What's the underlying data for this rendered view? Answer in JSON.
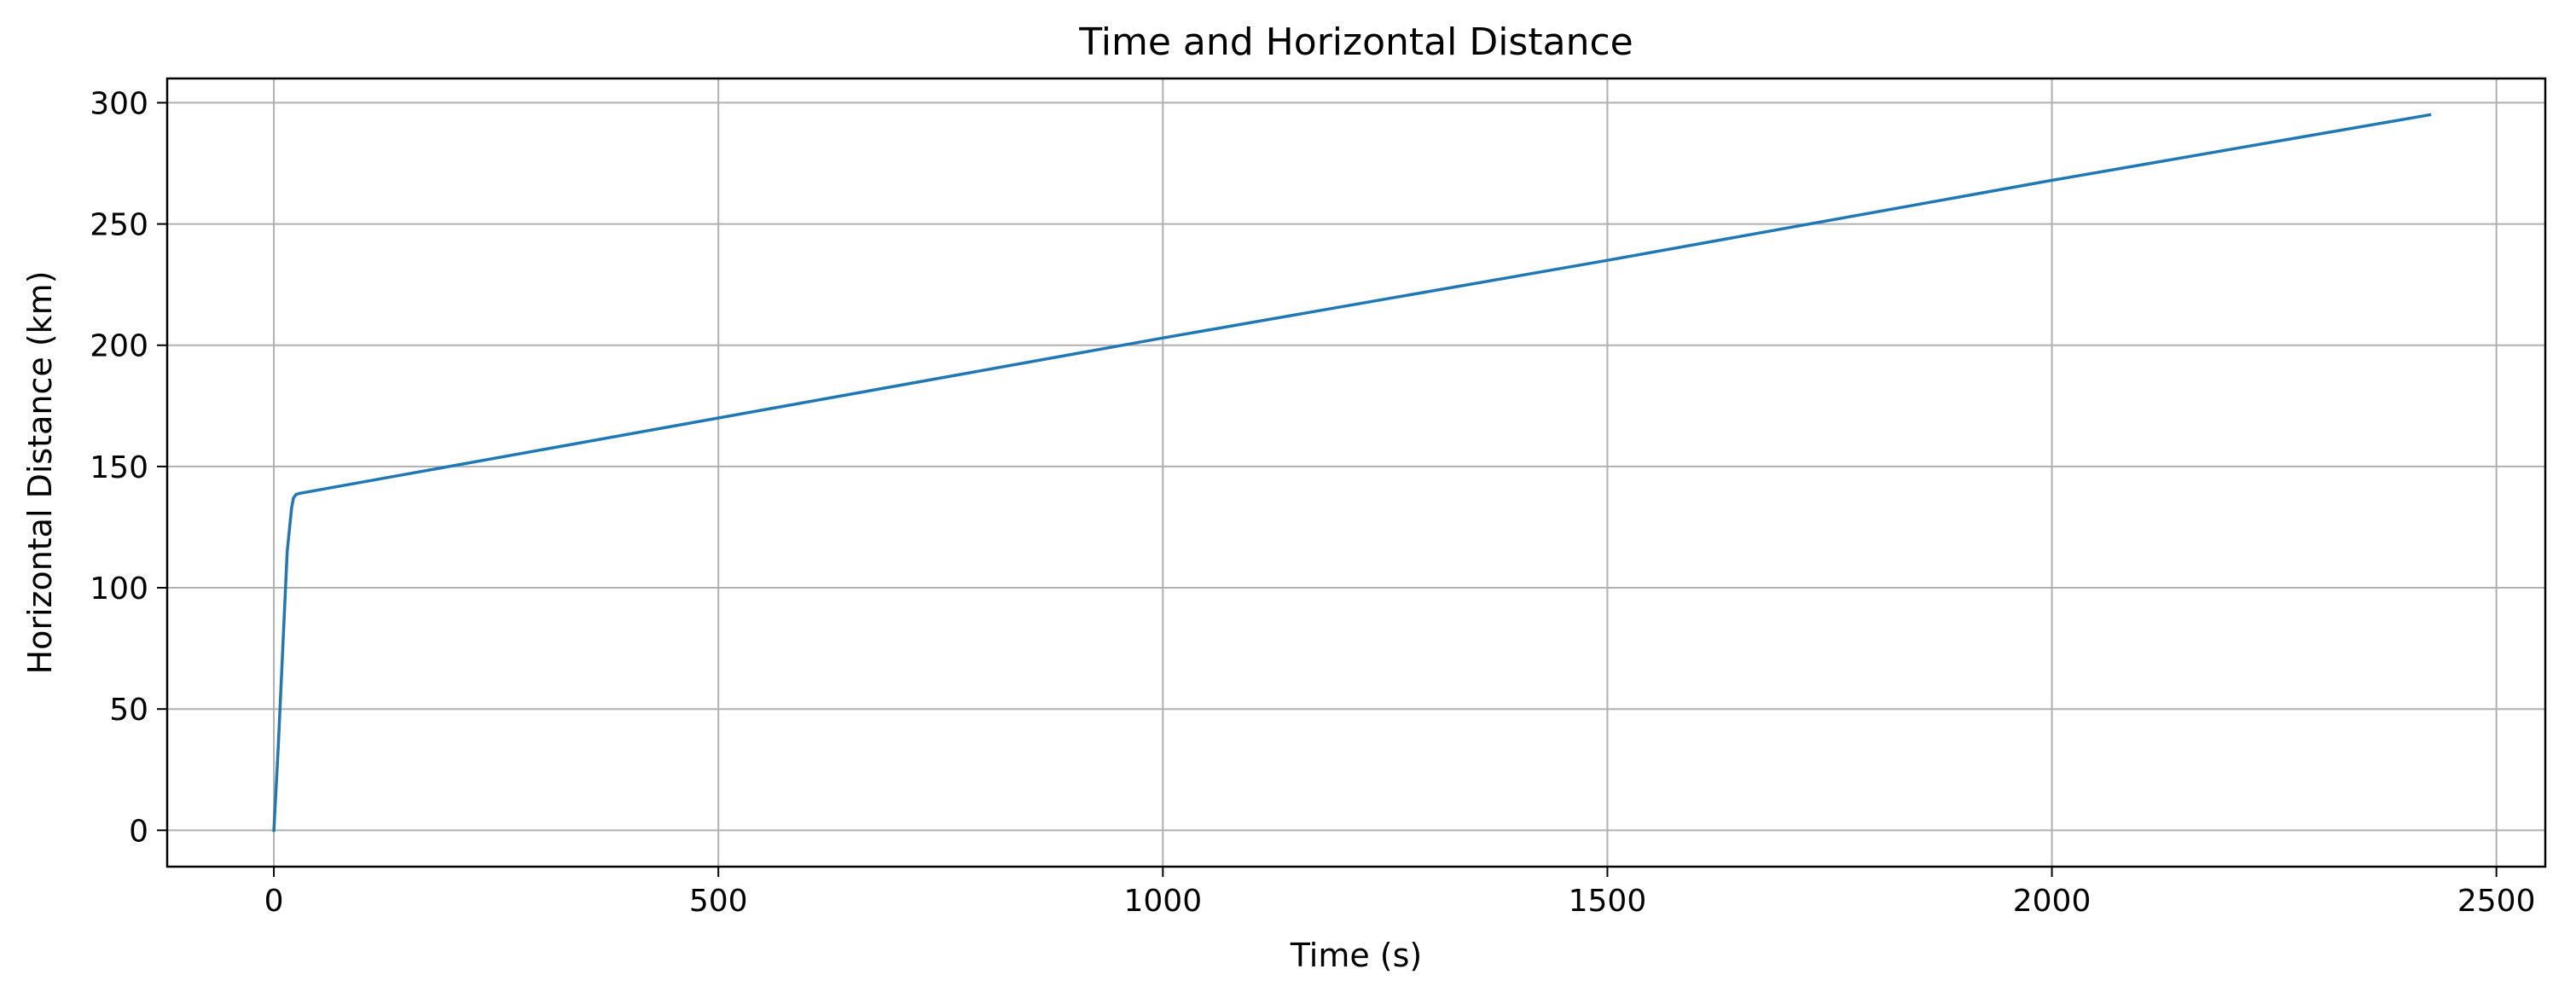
{
  "chart_data": {
    "type": "line",
    "title": "Time and Horizontal Distance",
    "xlabel": "Time (s)",
    "ylabel": "Horizontal Distance (km)",
    "xlim": [
      -120,
      2555
    ],
    "ylim": [
      -15,
      310
    ],
    "xticks": [
      0,
      500,
      1000,
      1500,
      2000,
      2500
    ],
    "yticks": [
      0,
      50,
      100,
      150,
      200,
      250,
      300
    ],
    "xtick_labels": [
      "0",
      "500",
      "1000",
      "1500",
      "2000",
      "2500"
    ],
    "ytick_labels": [
      "0",
      "50",
      "100",
      "150",
      "200",
      "250",
      "300"
    ],
    "grid": true,
    "series": [
      {
        "color": "#1f77b4",
        "x": [
          0,
          5,
          10,
          15,
          20,
          22,
          25,
          30,
          500,
          1000,
          1500,
          2000,
          2425
        ],
        "y": [
          0,
          35,
          75,
          115,
          133,
          137,
          138.5,
          139,
          170,
          203,
          235,
          268,
          295
        ]
      }
    ]
  }
}
